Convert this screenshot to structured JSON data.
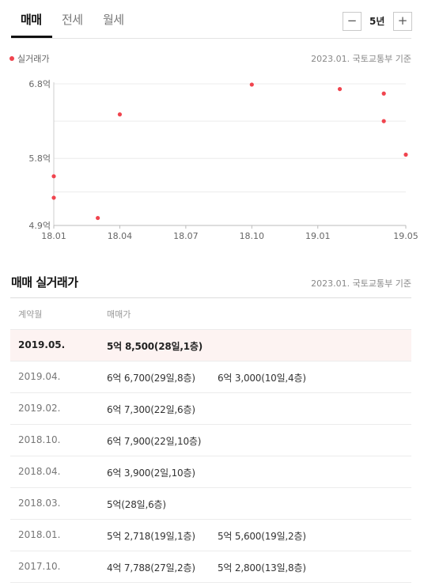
{
  "tabs": [
    "매매",
    "전세",
    "월세"
  ],
  "stepper": {
    "minus": "−",
    "value": "5년",
    "plus": "+"
  },
  "legend": "실거래가",
  "source": "2023.01. 국토교통부 기준",
  "colors": {
    "dot": "#f0444e",
    "highlight_bg": "#fdf3f2"
  },
  "chart_data": {
    "type": "scatter",
    "series": [
      {
        "name": "실거래가",
        "points": [
          {
            "x": "2018.01",
            "y": 5.2718
          },
          {
            "x": "2018.01",
            "y": 5.56
          },
          {
            "x": "2018.03",
            "y": 5.0
          },
          {
            "x": "2018.04",
            "y": 6.39
          },
          {
            "x": "2018.10",
            "y": 6.79
          },
          {
            "x": "2019.02",
            "y": 6.73
          },
          {
            "x": "2019.04",
            "y": 6.67
          },
          {
            "x": "2019.04",
            "y": 6.3
          },
          {
            "x": "2019.05",
            "y": 5.85
          }
        ]
      }
    ],
    "y_ticks": [
      {
        "value": 6.8,
        "label": "6.8억"
      },
      {
        "value": 5.8,
        "label": "5.8억"
      },
      {
        "value": 4.9,
        "label": "4.9억"
      }
    ],
    "x_ticks": [
      "18.01",
      "18.04",
      "18.07",
      "18.10",
      "19.01",
      "19.05"
    ],
    "ylim": [
      4.9,
      6.8
    ],
    "grid": true
  },
  "table": {
    "title": "매매 실거래가",
    "source": "2023.01. 국토교통부 기준",
    "headers": [
      "계약월",
      "매매가"
    ],
    "rows": [
      {
        "date": "2019.05.",
        "deals": [
          "5억 8,500(28일,1층)"
        ],
        "highlight": true
      },
      {
        "date": "2019.04.",
        "deals": [
          "6억 6,700(29일,8층)",
          "6억 3,000(10일,4층)"
        ]
      },
      {
        "date": "2019.02.",
        "deals": [
          "6억 7,300(22일,6층)"
        ]
      },
      {
        "date": "2018.10.",
        "deals": [
          "6억 7,900(22일,10층)"
        ]
      },
      {
        "date": "2018.04.",
        "deals": [
          "6억 3,900(2일,10층)"
        ]
      },
      {
        "date": "2018.03.",
        "deals": [
          "5억(28일,6층)"
        ]
      },
      {
        "date": "2018.01.",
        "deals": [
          "5억 2,718(19일,1층)",
          "5억 5,600(19일,2층)"
        ]
      },
      {
        "date": "2017.10.",
        "deals": [
          "4억 7,788(27일,2층)",
          "5억 2,800(13일,8층)"
        ]
      }
    ]
  }
}
